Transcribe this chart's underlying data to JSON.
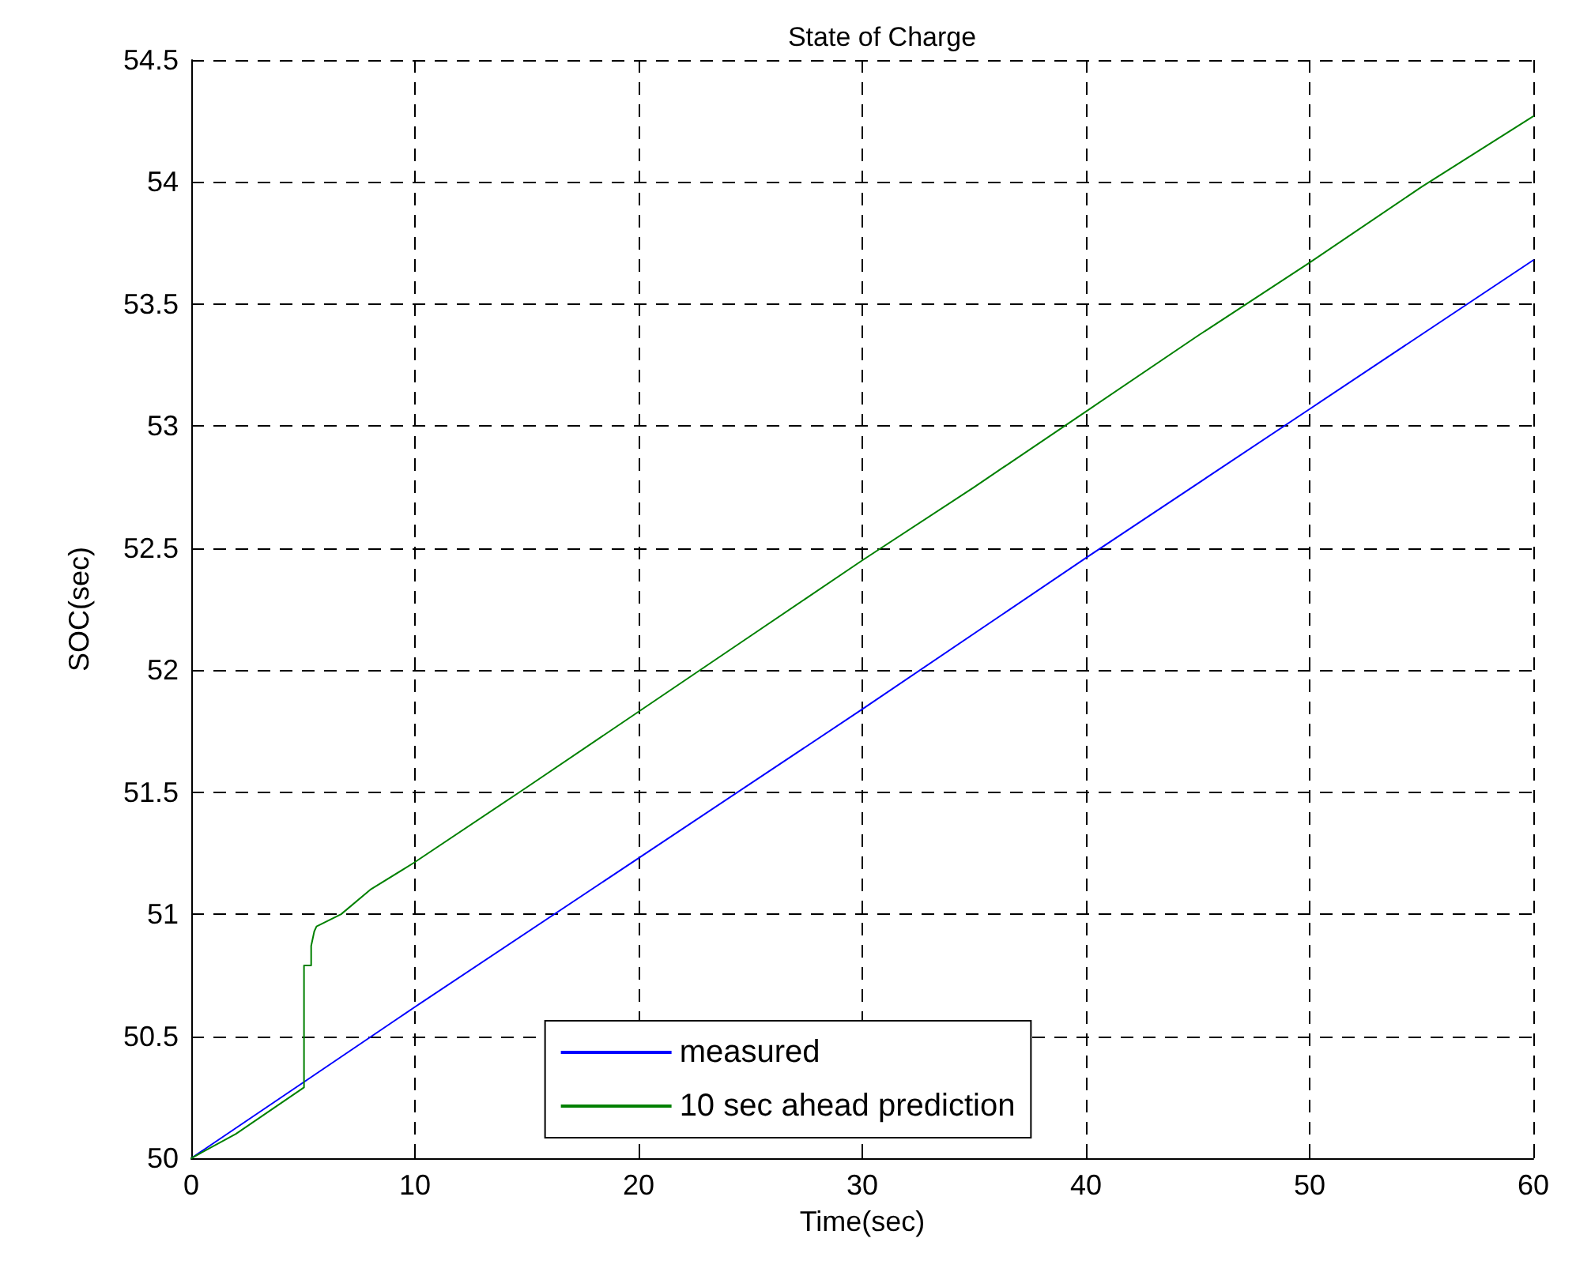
{
  "chart_data": {
    "type": "line",
    "title": "State of Charge",
    "xlabel": "Time(sec)",
    "ylabel": "SOC(sec)",
    "xlim": [
      0,
      60
    ],
    "xticks": [
      0,
      10,
      20,
      30,
      40,
      50,
      60
    ],
    "ylim": [
      50,
      54.5
    ],
    "yticks": [
      50,
      50.5,
      51,
      51.5,
      52,
      52.5,
      53,
      53.5,
      54,
      54.5
    ],
    "grid": true,
    "legend": "bottom",
    "line_style": "solid",
    "marker": "none",
    "series": [
      {
        "name": "measured",
        "color": "#0000ff",
        "x": [
          0,
          5,
          10,
          20,
          30,
          40,
          50,
          60
        ],
        "values": [
          50,
          50.31,
          50.62,
          51.23,
          51.84,
          52.46,
          53.07,
          53.68
        ]
      },
      {
        "name": "10 sec ahead prediction",
        "color": "#008000",
        "x": [
          0,
          2,
          5.04,
          5.04,
          5.36,
          5.36,
          5.5,
          5.6,
          6.7,
          8,
          9.94,
          15,
          20,
          25,
          30,
          35,
          40,
          45,
          50,
          55,
          60
        ],
        "values": [
          50,
          50.1,
          50.29,
          50.79,
          50.79,
          50.87,
          50.93,
          50.95,
          51,
          51.1,
          51.21,
          51.52,
          51.83,
          52.14,
          52.45,
          52.75,
          53.06,
          53.37,
          53.67,
          53.98,
          54.27
        ]
      }
    ]
  }
}
